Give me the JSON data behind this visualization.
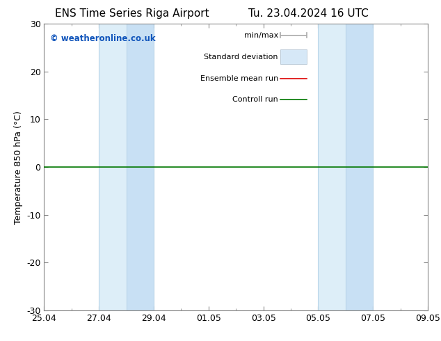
{
  "title_left": "ENS Time Series Riga Airport",
  "title_right": "Tu. 23.04.2024 16 UTC",
  "ylabel": "Temperature 850 hPa (°C)",
  "ylim": [
    -30,
    30
  ],
  "yticks": [
    -30,
    -20,
    -10,
    0,
    10,
    20,
    30
  ],
  "x_tick_labels": [
    "25.04",
    "27.04",
    "29.04",
    "01.05",
    "03.05",
    "05.05",
    "07.05",
    "09.05"
  ],
  "x_tick_positions": [
    0,
    2,
    4,
    6,
    8,
    10,
    12,
    14
  ],
  "x_minor_tick_positions": [
    1,
    3,
    5,
    7,
    9,
    11,
    13
  ],
  "shaded_regions": [
    {
      "x_start": 2,
      "x_end": 3,
      "color": "#ddeef8"
    },
    {
      "x_start": 3,
      "x_end": 4,
      "color": "#c8e0f4"
    },
    {
      "x_start": 10,
      "x_end": 11,
      "color": "#ddeef8"
    },
    {
      "x_start": 11,
      "x_end": 12,
      "color": "#c8e0f4"
    }
  ],
  "vertical_lines_inner": [
    {
      "x": 3,
      "color": "#b8d4e8",
      "lw": 0.8
    },
    {
      "x": 11,
      "color": "#b8d4e8",
      "lw": 0.8
    }
  ],
  "vertical_lines_outer": [
    {
      "x": 2,
      "color": "#b8d4e8",
      "lw": 0.8
    },
    {
      "x": 4,
      "color": "#b8d4e8",
      "lw": 0.8
    },
    {
      "x": 10,
      "color": "#b8d4e8",
      "lw": 0.8
    },
    {
      "x": 12,
      "color": "#b8d4e8",
      "lw": 0.8
    }
  ],
  "control_run_y": 0,
  "control_run_color": "#007700",
  "ensemble_mean_color": "#dd0000",
  "watermark": "© weatheronline.co.uk",
  "watermark_color": "#1155bb",
  "background_color": "#ffffff",
  "spine_color": "#888888",
  "font_family": "DejaVu Sans",
  "title_fontsize": 11,
  "axis_label_fontsize": 9,
  "tick_fontsize": 9,
  "legend_fontsize": 8
}
